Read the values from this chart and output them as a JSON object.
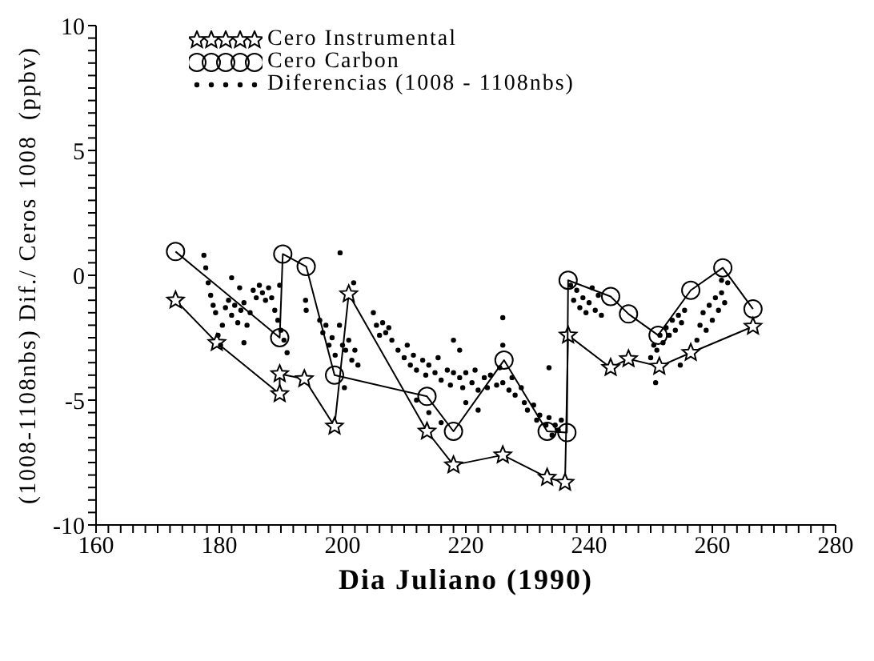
{
  "chart_data": {
    "type": "line",
    "xlabel": "Dia Juliano (1990)",
    "ylabel": "(1008-1108nbs) Dif./ Ceros 1008  (ppbv)",
    "xlim": [
      160,
      280
    ],
    "ylim": [
      -10,
      10
    ],
    "xticks": [
      160,
      {
        "value": 162,
        "label": null
      },
      {
        "value": 164,
        "label": null
      },
      {
        "value": 166,
        "label": null
      },
      {
        "value": 168,
        "label": null
      },
      {
        "value": 170,
        "label": null
      },
      {
        "value": 172,
        "label": null
      },
      {
        "value": 174,
        "label": null
      },
      {
        "value": 176,
        "label": null
      },
      {
        "value": 178,
        "label": null
      },
      180,
      {
        "value": 182,
        "label": null
      },
      {
        "value": 184,
        "label": null
      },
      {
        "value": 186,
        "label": null
      },
      {
        "value": 188,
        "label": null
      },
      {
        "value": 190,
        "label": null
      },
      {
        "value": 192,
        "label": null
      },
      {
        "value": 194,
        "label": null
      },
      {
        "value": 196,
        "label": null
      },
      {
        "value": 198,
        "label": null
      },
      200,
      {
        "value": 202,
        "label": null
      },
      {
        "value": 204,
        "label": null
      },
      {
        "value": 206,
        "label": null
      },
      {
        "value": 208,
        "label": null
      },
      {
        "value": 210,
        "label": null
      },
      {
        "value": 212,
        "label": null
      },
      {
        "value": 214,
        "label": null
      },
      {
        "value": 216,
        "label": null
      },
      {
        "value": 218,
        "label": null
      },
      220,
      {
        "value": 222,
        "label": null
      },
      {
        "value": 224,
        "label": null
      },
      {
        "value": 226,
        "label": null
      },
      {
        "value": 228,
        "label": null
      },
      {
        "value": 230,
        "label": null
      },
      {
        "value": 232,
        "label": null
      },
      {
        "value": 234,
        "label": null
      },
      {
        "value": 236,
        "label": null
      },
      {
        "value": 238,
        "label": null
      },
      240,
      {
        "value": 242,
        "label": null
      },
      {
        "value": 244,
        "label": null
      },
      {
        "value": 246,
        "label": null
      },
      {
        "value": 248,
        "label": null
      },
      {
        "value": 250,
        "label": null
      },
      {
        "value": 252,
        "label": null
      },
      {
        "value": 254,
        "label": null
      },
      {
        "value": 256,
        "label": null
      },
      {
        "value": 258,
        "label": null
      },
      260,
      {
        "value": 262,
        "label": null
      },
      {
        "value": 264,
        "label": null
      },
      {
        "value": 266,
        "label": null
      },
      {
        "value": 268,
        "label": null
      },
      {
        "value": 270,
        "label": null
      },
      {
        "value": 272,
        "label": null
      },
      {
        "value": 274,
        "label": null
      },
      {
        "value": 276,
        "label": null
      },
      {
        "value": 278,
        "label": null
      },
      280
    ],
    "yticks": [
      -10,
      {
        "value": -9.5,
        "label": null
      },
      {
        "value": -9,
        "label": null
      },
      {
        "value": -8.5,
        "label": null
      },
      {
        "value": -8,
        "label": null
      },
      {
        "value": -7.5,
        "label": null
      },
      {
        "value": -7,
        "label": null
      },
      {
        "value": -6.5,
        "label": null
      },
      {
        "value": -6,
        "label": null
      },
      {
        "value": -5.5,
        "label": null
      },
      -5,
      {
        "value": -4.5,
        "label": null
      },
      {
        "value": -4,
        "label": null
      },
      {
        "value": -3.5,
        "label": null
      },
      {
        "value": -3,
        "label": null
      },
      {
        "value": -2.5,
        "label": null
      },
      {
        "value": -2,
        "label": null
      },
      {
        "value": -1.5,
        "label": null
      },
      {
        "value": -1,
        "label": null
      },
      {
        "value": -0.5,
        "label": null
      },
      0,
      {
        "value": 0.5,
        "label": null
      },
      {
        "value": 1,
        "label": null
      },
      {
        "value": 1.5,
        "label": null
      },
      {
        "value": 2,
        "label": null
      },
      {
        "value": 2.5,
        "label": null
      },
      {
        "value": 3,
        "label": null
      },
      {
        "value": 3.5,
        "label": null
      },
      {
        "value": 4,
        "label": null
      },
      {
        "value": 4.5,
        "label": null
      },
      5,
      {
        "value": 5.5,
        "label": null
      },
      {
        "value": 6,
        "label": null
      },
      {
        "value": 6.5,
        "label": null
      },
      {
        "value": 7,
        "label": null
      },
      {
        "value": 7.5,
        "label": null
      },
      {
        "value": 8,
        "label": null
      },
      {
        "value": 8.5,
        "label": null
      },
      {
        "value": 9,
        "label": null
      },
      {
        "value": 9.5,
        "label": null
      },
      10
    ],
    "grid": false,
    "legend": "top left",
    "series": [
      {
        "name": "Cero Instrumental",
        "marker": "star",
        "color": "#000000",
        "x": [
          172.9,
          179.6,
          189.8,
          189.8,
          193.8,
          198.7,
          201.0,
          213.7,
          218.0,
          226.0,
          233.2,
          236.1,
          236.6,
          243.5,
          246.4,
          251.4,
          256.5,
          266.6
        ],
        "values": [
          -1.0,
          -2.7,
          -4.75,
          -3.95,
          -4.15,
          -6.05,
          -0.75,
          -6.25,
          -7.6,
          -7.2,
          -8.1,
          -8.3,
          -2.4,
          -3.7,
          -3.35,
          -3.65,
          -3.1,
          -2.05
        ]
      },
      {
        "name": "Cero Carbon",
        "marker": "circle",
        "color": "#000000",
        "x": [
          172.9,
          189.8,
          190.3,
          194.1,
          198.7,
          213.7,
          218.0,
          226.2,
          233.2,
          236.4,
          236.6,
          243.5,
          246.4,
          251.2,
          256.5,
          261.7,
          266.6
        ],
        "values": [
          0.95,
          -2.5,
          0.85,
          0.35,
          -4.0,
          -4.85,
          -6.25,
          -3.4,
          -6.25,
          -6.3,
          -0.2,
          -0.85,
          -1.55,
          -2.4,
          -0.6,
          0.3,
          -1.35
        ]
      },
      {
        "name": "Diferencias (1008 - 1108nbs)",
        "type": "scatter",
        "marker": "circle",
        "color": "#000000",
        "x": [
          177.5,
          177.8,
          178.2,
          178.6,
          179,
          179.4,
          179.8,
          180.2,
          180.5,
          181,
          181.5,
          182,
          182.5,
          183,
          183.5,
          184,
          184.5,
          185,
          185.5,
          186,
          186.5,
          187,
          187.5,
          188,
          188.5,
          189,
          189.5,
          190,
          190.5,
          191,
          182,
          184,
          183.3,
          189.8,
          194,
          194.1,
          196.3,
          196.8,
          197.3,
          197.8,
          198.3,
          198.8,
          199.5,
          200,
          200.5,
          201,
          201.5,
          202,
          202.5,
          199.6,
          201.8,
          200.3,
          205,
          205.5,
          206,
          206.5,
          207,
          207.5,
          208,
          209,
          210,
          210.5,
          211,
          211.5,
          212,
          213,
          213.5,
          214,
          215,
          215.5,
          216,
          217,
          217.5,
          218,
          219,
          219.5,
          220,
          221,
          221.5,
          222,
          223,
          223.5,
          224,
          225,
          225.5,
          226,
          227,
          227.5,
          228,
          229,
          229.5,
          230,
          231,
          231.5,
          232,
          233,
          233.5,
          234,
          234.5,
          235,
          235.5,
          212,
          214,
          216,
          218,
          220,
          222,
          226,
          226,
          233.5,
          219,
          237,
          237.5,
          238,
          238.5,
          239,
          239.5,
          240,
          240.5,
          241,
          241.5,
          242,
          250,
          250.5,
          251,
          251.5,
          252,
          252.5,
          253,
          253.5,
          254,
          254.5,
          255,
          255.5,
          250.8,
          254.8,
          257.5,
          258,
          258.5,
          259,
          259.5,
          260,
          260.5,
          261,
          261.5,
          262,
          262.5,
          261.5
        ],
        "values": [
          0.8,
          0.3,
          -0.3,
          -0.8,
          -1.2,
          -1.5,
          -2.4,
          -2.8,
          -2.0,
          -1.3,
          -1.0,
          -1.6,
          -1.2,
          -1.9,
          -1.4,
          -1.1,
          -2.0,
          -1.5,
          -0.6,
          -0.9,
          -0.4,
          -0.7,
          -1.0,
          -0.5,
          -0.9,
          -1.4,
          -1.8,
          -2.2,
          -2.6,
          -3.1,
          -0.1,
          -2.7,
          -0.5,
          -0.4,
          -1.0,
          -1.4,
          -1.8,
          -2.3,
          -2.0,
          -2.8,
          -2.5,
          -3.2,
          -2.0,
          -2.8,
          -3.0,
          -2.6,
          -3.4,
          -3.0,
          -3.6,
          0.9,
          -0.3,
          -4.5,
          -1.5,
          -2.0,
          -2.4,
          -1.9,
          -2.3,
          -2.1,
          -2.6,
          -3.0,
          -3.3,
          -2.8,
          -3.6,
          -3.2,
          -3.8,
          -3.4,
          -4.0,
          -3.6,
          -3.9,
          -3.3,
          -4.2,
          -3.8,
          -4.4,
          -3.9,
          -4.1,
          -4.5,
          -3.9,
          -4.3,
          -3.8,
          -4.6,
          -4.1,
          -4.5,
          -4.0,
          -4.4,
          -3.7,
          -4.3,
          -4.6,
          -4.1,
          -4.8,
          -4.5,
          -5.1,
          -5.4,
          -5.2,
          -5.8,
          -5.6,
          -6.0,
          -5.7,
          -6.4,
          -6.0,
          -6.2,
          -5.8,
          -5.0,
          -5.5,
          -5.9,
          -2.6,
          -5.1,
          -5.4,
          -1.7,
          -2.8,
          -3.7,
          -3.0,
          -0.4,
          -1.0,
          -0.6,
          -1.3,
          -0.9,
          -1.5,
          -1.1,
          -0.5,
          -1.4,
          -0.8,
          -1.6,
          -3.3,
          -2.8,
          -3.0,
          -2.4,
          -2.7,
          -2.1,
          -2.4,
          -1.8,
          -2.2,
          -1.6,
          -1.9,
          -1.4,
          -4.3,
          -3.6,
          -2.6,
          -2.0,
          -1.5,
          -2.2,
          -1.2,
          -1.8,
          -0.9,
          -1.4,
          -0.7,
          -1.1,
          -0.3,
          -0.2
        ]
      }
    ]
  }
}
